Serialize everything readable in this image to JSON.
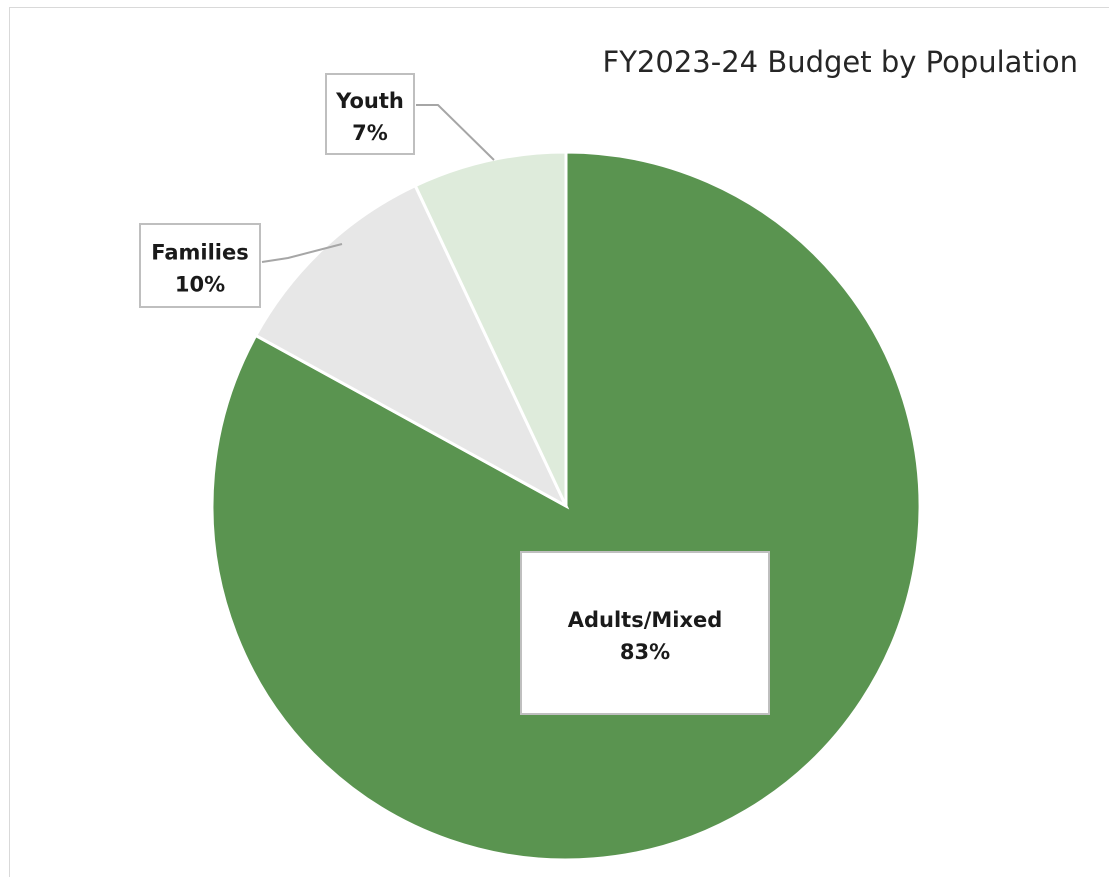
{
  "chart_data": {
    "type": "pie",
    "title": "FY2023-24 Budget by Population",
    "start_angle_deg": 0,
    "direction": "clockwise",
    "slices": [
      {
        "label": "Adults/Mixed",
        "value": 83,
        "display": "83%",
        "color": "#5a9450"
      },
      {
        "label": "Families",
        "value": 10,
        "display": "10%",
        "color": "#e7e7e7"
      },
      {
        "label": "Youth",
        "value": 7,
        "display": "7%",
        "color": "#deebdb"
      }
    ],
    "legend": "none",
    "data_labels": "category name and percentage, boxed callouts with leader lines"
  }
}
